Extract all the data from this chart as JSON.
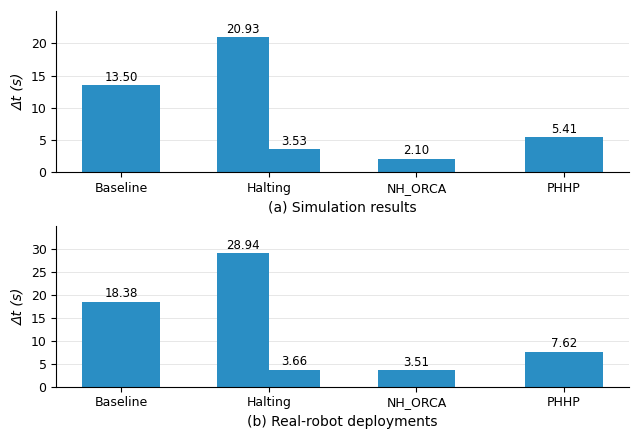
{
  "categories": [
    "Baseline",
    "Halting",
    "NH_ORCA",
    "PHHP"
  ],
  "sim_values": [
    13.5,
    20.93,
    2.1,
    5.41
  ],
  "real_values": [
    18.38,
    28.94,
    3.51,
    7.62
  ],
  "sim_paired_values": [
    null,
    3.53,
    null,
    null
  ],
  "real_paired_values": [
    null,
    3.66,
    null,
    null
  ],
  "bar_color": "#2a8ec4",
  "bar_width": 0.35,
  "sim_ylim": [
    0,
    25
  ],
  "sim_yticks": [
    0,
    5,
    10,
    15,
    20
  ],
  "real_ylim": [
    0,
    35
  ],
  "real_yticks": [
    0,
    5,
    10,
    15,
    20,
    25,
    30
  ],
  "ylabel": "Δt (s)",
  "sim_label": "(a) Simulation results",
  "real_label": "(b) Real-robot deployments",
  "label_fontsize": 10,
  "tick_fontsize": 9,
  "value_fontsize": 8.5,
  "background_color": "#ffffff"
}
